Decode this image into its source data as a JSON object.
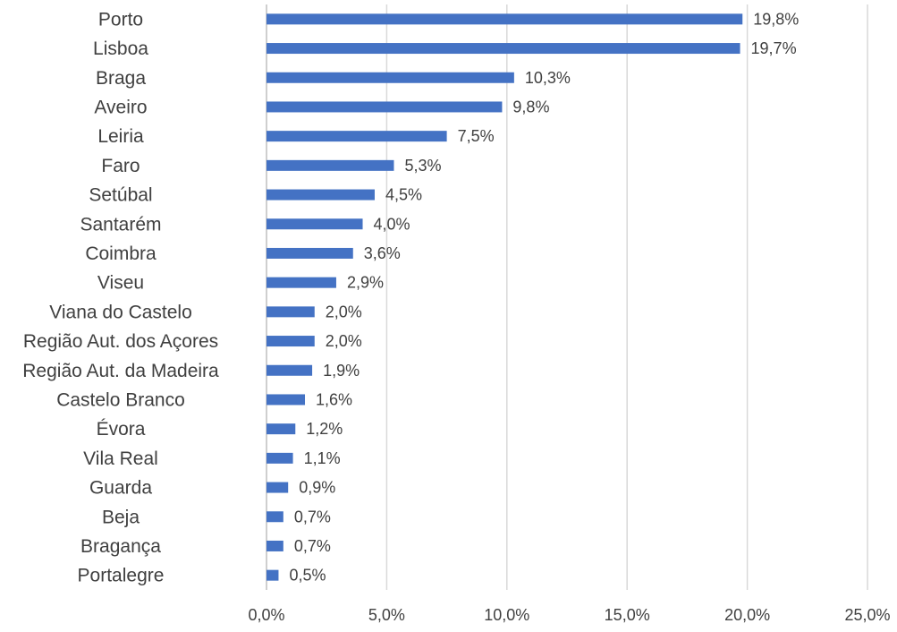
{
  "chart_data": {
    "type": "bar",
    "orientation": "horizontal",
    "categories": [
      "Porto",
      "Lisboa",
      "Braga",
      "Aveiro",
      "Leiria",
      "Faro",
      "Setúbal",
      "Santarém",
      "Coimbra",
      "Viseu",
      "Viana do Castelo",
      "Região Aut. dos Açores",
      "Região Aut. da Madeira",
      "Castelo Branco",
      "Évora",
      "Vila Real",
      "Guarda",
      "Beja",
      "Bragança",
      "Portalegre"
    ],
    "values": [
      19.8,
      19.7,
      10.3,
      9.8,
      7.5,
      5.3,
      4.5,
      4.0,
      3.6,
      2.9,
      2.0,
      2.0,
      1.9,
      1.6,
      1.2,
      1.1,
      0.9,
      0.7,
      0.7,
      0.5
    ],
    "value_labels": [
      "19,8%",
      "19,7%",
      "10,3%",
      "9,8%",
      "7,5%",
      "5,3%",
      "4,5%",
      "4,0%",
      "3,6%",
      "2,9%",
      "2,0%",
      "2,0%",
      "1,9%",
      "1,6%",
      "1,2%",
      "1,1%",
      "0,9%",
      "0,7%",
      "0,7%",
      "0,5%"
    ],
    "x_ticks": [
      0,
      5,
      10,
      15,
      20,
      25
    ],
    "x_tick_labels": [
      "0,0%",
      "5,0%",
      "10,0%",
      "15,0%",
      "20,0%",
      "25,0%"
    ],
    "xlim": [
      0,
      25
    ],
    "title": "",
    "xlabel": "",
    "ylabel": "",
    "grid": "vertical",
    "bar_color": "#4472c4",
    "grid_color": "#d9d9d9",
    "text_color": "#404040"
  }
}
